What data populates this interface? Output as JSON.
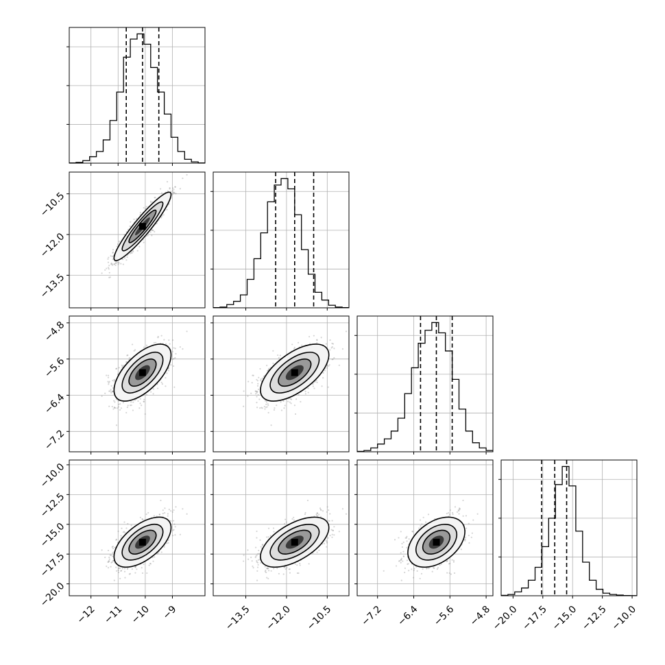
{
  "chart_data": {
    "type": "corner",
    "grid": true,
    "parameters": [
      {
        "range": [
          -12.8,
          -7.8
        ],
        "ticks": [
          -12,
          -11,
          -10,
          -9
        ],
        "tick_labels": [
          "−12",
          "−11",
          "−10",
          "−9"
        ],
        "mean": -10.1,
        "sigma": 0.5,
        "quantiles": [
          -10.7,
          -10.1,
          -9.5
        ]
      },
      {
        "range": [
          -14.7,
          -9.7
        ],
        "ticks": [
          -13.5,
          -12.0,
          -10.5
        ],
        "tick_labels": [
          "−13.5",
          "−12.0",
          "−10.5"
        ],
        "mean": -11.7,
        "sigma": 0.6,
        "quantiles": [
          -12.4,
          -11.7,
          -11.0
        ]
      },
      {
        "range": [
          -7.65,
          -4.65
        ],
        "ticks": [
          -7.2,
          -6.4,
          -5.6,
          -4.8
        ],
        "tick_labels": [
          "−7.2",
          "−6.4",
          "−5.6",
          "−4.8"
        ],
        "mean": -5.9,
        "sigma": 0.3,
        "quantiles": [
          -6.25,
          -5.9,
          -5.55
        ]
      },
      {
        "range": [
          -21.0,
          -9.6
        ],
        "ticks": [
          -20.0,
          -17.5,
          -15.0,
          -12.5,
          -10.0
        ],
        "tick_labels": [
          "−20.0",
          "−17.5",
          "−15.0",
          "−12.5",
          "−10.0"
        ],
        "mean": -16.5,
        "sigma": 1.0,
        "quantiles": [
          -17.6,
          -16.5,
          -15.5
        ]
      }
    ],
    "correlations": [
      [
        1.0,
        0.93,
        0.62,
        0.58
      ],
      [
        0.93,
        1.0,
        0.62,
        0.58
      ],
      [
        0.62,
        0.62,
        1.0,
        0.42
      ],
      [
        0.58,
        0.58,
        0.42,
        1.0
      ]
    ],
    "histograms": [
      [
        0.002,
        0.006,
        0.02,
        0.05,
        0.09,
        0.18,
        0.33,
        0.55,
        0.82,
        0.96,
        1.0,
        0.92,
        0.74,
        0.55,
        0.38,
        0.2,
        0.09,
        0.03,
        0.01,
        0.002
      ],
      [
        0.002,
        0.006,
        0.025,
        0.05,
        0.1,
        0.22,
        0.38,
        0.58,
        0.82,
        0.95,
        1.0,
        0.92,
        0.72,
        0.45,
        0.26,
        0.12,
        0.06,
        0.02,
        0.006,
        0.002
      ],
      [
        0.003,
        0.01,
        0.03,
        0.06,
        0.1,
        0.16,
        0.26,
        0.45,
        0.65,
        0.84,
        0.94,
        1.0,
        0.92,
        0.78,
        0.56,
        0.33,
        0.16,
        0.07,
        0.03,
        0.01
      ],
      [
        0.003,
        0.01,
        0.03,
        0.06,
        0.12,
        0.22,
        0.38,
        0.6,
        0.86,
        1.0,
        0.85,
        0.5,
        0.26,
        0.12,
        0.05,
        0.02,
        0.01,
        0.005,
        0.002,
        0.001
      ]
    ],
    "contour_levels": [
      "0.5σ",
      "1σ",
      "1.5σ",
      "2σ"
    ],
    "xlabel": "",
    "ylabel": ""
  }
}
